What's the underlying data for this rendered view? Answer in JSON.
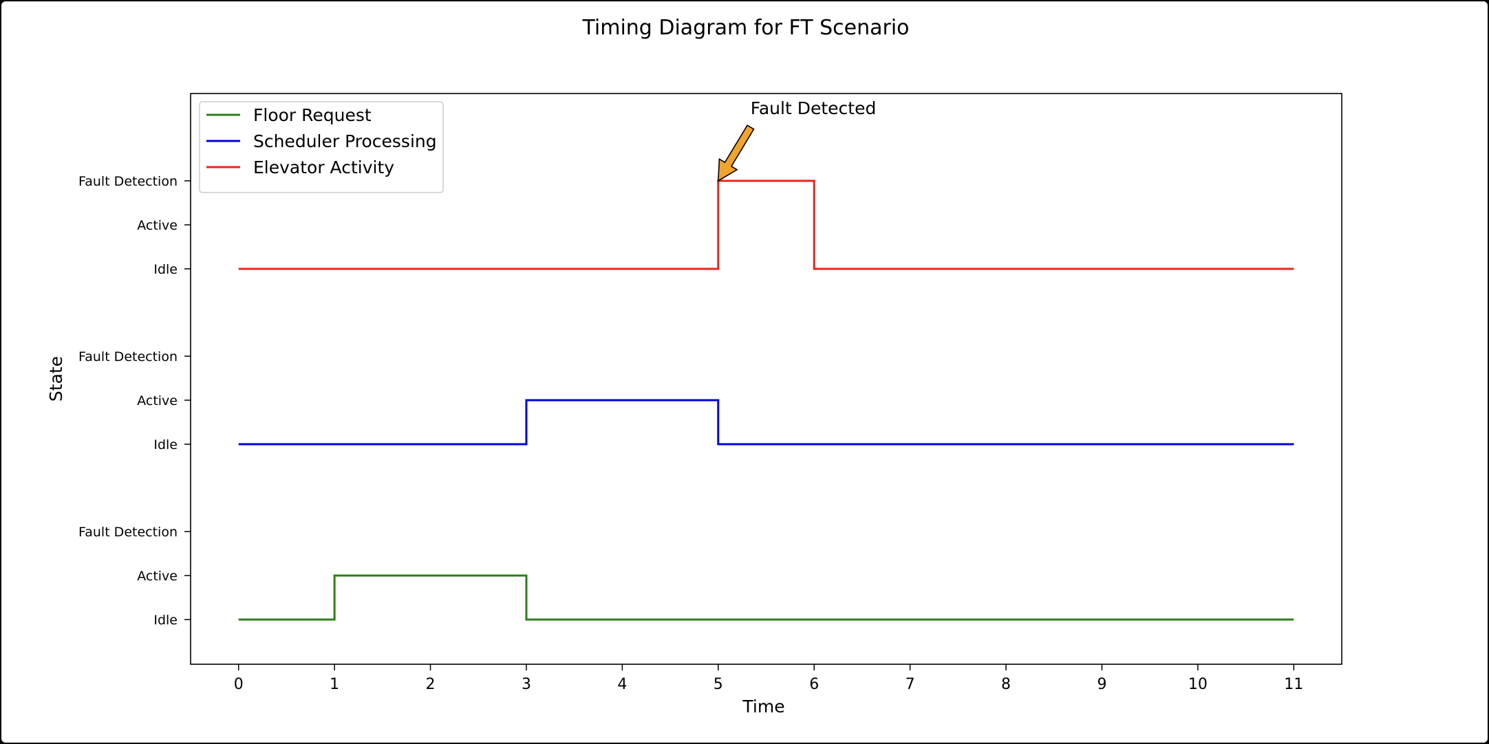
{
  "chart_data": {
    "type": "line",
    "step": "post",
    "title": "Timing Diagram for FT Scenario",
    "xlabel": "Time",
    "ylabel": "State",
    "xlim": [
      -0.5,
      11.5
    ],
    "x_ticks": [
      0,
      1,
      2,
      3,
      4,
      5,
      6,
      7,
      8,
      9,
      10,
      11
    ],
    "state_labels": [
      "Idle",
      "Active",
      "Fault Detection"
    ],
    "grid": false,
    "legend_position": "top-left",
    "x": [
      0,
      1,
      2,
      3,
      4,
      5,
      6,
      7,
      8,
      9,
      10,
      11
    ],
    "series": [
      {
        "name": "Floor Request",
        "color": "#2e7d1a",
        "values": [
          "Idle",
          "Active",
          "Active",
          "Idle",
          "Idle",
          "Idle",
          "Idle",
          "Idle",
          "Idle",
          "Idle",
          "Idle",
          "Idle"
        ]
      },
      {
        "name": "Scheduler Processing",
        "color": "#0000e0",
        "values": [
          "Idle",
          "Idle",
          "Idle",
          "Active",
          "Active",
          "Idle",
          "Idle",
          "Idle",
          "Idle",
          "Idle",
          "Idle",
          "Idle"
        ]
      },
      {
        "name": "Elevator Activity",
        "color": "#e8261d",
        "values": [
          "Idle",
          "Idle",
          "Idle",
          "Idle",
          "Idle",
          "Fault Detection",
          "Idle",
          "Idle",
          "Idle",
          "Idle",
          "Idle",
          "Idle"
        ]
      }
    ],
    "annotations": [
      {
        "text": "Fault Detected",
        "series": "Elevator Activity",
        "x": 5,
        "state": "Fault Detection",
        "arrow_color": "#f0a32e"
      }
    ]
  }
}
